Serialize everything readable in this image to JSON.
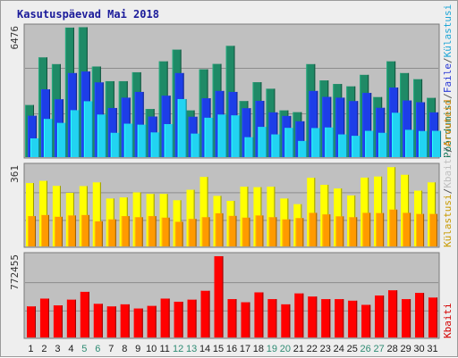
{
  "chart_data": {
    "type": "bar",
    "title": "Kasutuspäevad Mai 2018",
    "categories": [
      "1",
      "2",
      "3",
      "4",
      "5",
      "6",
      "7",
      "8",
      "9",
      "10",
      "11",
      "12",
      "13",
      "14",
      "15",
      "16",
      "17",
      "18",
      "19",
      "20",
      "21",
      "22",
      "23",
      "24",
      "25",
      "26",
      "27",
      "28",
      "29",
      "30",
      "31"
    ],
    "weekend_days": [
      "5",
      "6",
      "12",
      "13",
      "19",
      "20",
      "26",
      "27"
    ],
    "panels": [
      {
        "id": "top",
        "ymax_label": "6476",
        "ymax": 6476,
        "legend": [
          {
            "text": "Pöördumisi",
            "color": "#137a5c"
          },
          {
            "text": "Faile",
            "color": "#2b3ad6"
          },
          {
            "text": "Külastusi",
            "color": "#1fa6d6"
          }
        ],
        "series": [
          {
            "name": "Pöördumisi",
            "color": "#1f8a66",
            "values": [
              2580,
              4980,
              4640,
              6480,
              6500,
              4520,
              3780,
              3780,
              4230,
              2380,
              4780,
              5370,
              2310,
              4380,
              4650,
              5560,
              2780,
              3730,
              3400,
              2310,
              2220,
              4640,
              3820,
              3640,
              3520,
              4100,
              2980,
              4780,
              4190,
              3880,
              2940
            ]
          },
          {
            "name": "Faile",
            "color": "#1d3ee8",
            "values": [
              2040,
              3370,
              2870,
              4190,
              4270,
              3720,
              2430,
              2950,
              3240,
              2000,
              3050,
              4190,
              1990,
              2920,
              3290,
              3240,
              2420,
              2790,
              2210,
              2030,
              1760,
              3290,
              2990,
              2950,
              2780,
              3190,
              2440,
              3460,
              2810,
              2720,
              2210
            ]
          },
          {
            "name": "Külastusi",
            "color": "#22d3f2",
            "values": [
              900,
              1880,
              1680,
              2320,
              2770,
              2100,
              1180,
              1640,
              1590,
              1200,
              1620,
              2880,
              1140,
              1940,
              2100,
              2060,
              960,
              1480,
              1100,
              1430,
              770,
              1420,
              1450,
              1100,
              1030,
              1280,
              1180,
              2190,
              1330,
              1270,
              1280
            ]
          }
        ]
      },
      {
        "id": "middle",
        "ymax_label": "361",
        "ymax": 361,
        "legend": [
          {
            "text": "Külastusi",
            "color": "#c89a00"
          },
          {
            "text": "Kbaiti",
            "color": "#bfbfbf"
          },
          {
            "text": "Arvuteid",
            "color": "#e08a10"
          }
        ],
        "series": [
          {
            "name": "Külastusi",
            "color": "#ffff00",
            "values": [
              287,
              297,
              274,
              242,
              273,
              290,
              216,
              221,
              244,
              237,
              237,
              208,
              256,
              315,
              228,
              205,
              270,
              268,
              270,
              216,
              190,
              311,
              279,
              262,
              230,
              312,
              317,
              360,
              325,
              252,
              290
            ]
          },
          {
            "name": "Arvuteid",
            "color": "#ff9a00",
            "values": [
              135,
              140,
              132,
              138,
              140,
              111,
              120,
              135,
              130,
              135,
              128,
              109,
              122,
              130,
              148,
              136,
              128,
              138,
              130,
              120,
              126,
              150,
              143,
              134,
              130,
              150,
              149,
              165,
              150,
              145,
              145
            ]
          }
        ]
      },
      {
        "id": "bottom",
        "ymax_label": "772455",
        "ymax": 772455,
        "legend": [
          {
            "text": "Kbaiti",
            "color": "#d40000"
          }
        ],
        "series": [
          {
            "name": "Kbaiti",
            "color": "#ff0000",
            "values": [
              290000,
              365000,
              300000,
              355000,
              430000,
              315000,
              290000,
              310000,
              270000,
              295000,
              365000,
              335000,
              355000,
              440000,
              772455,
              360000,
              330000,
              425000,
              360000,
              310000,
              415000,
              385000,
              360000,
              360000,
              345000,
              305000,
              395000,
              445000,
              360000,
              420000,
              375000
            ]
          }
        ]
      }
    ]
  }
}
